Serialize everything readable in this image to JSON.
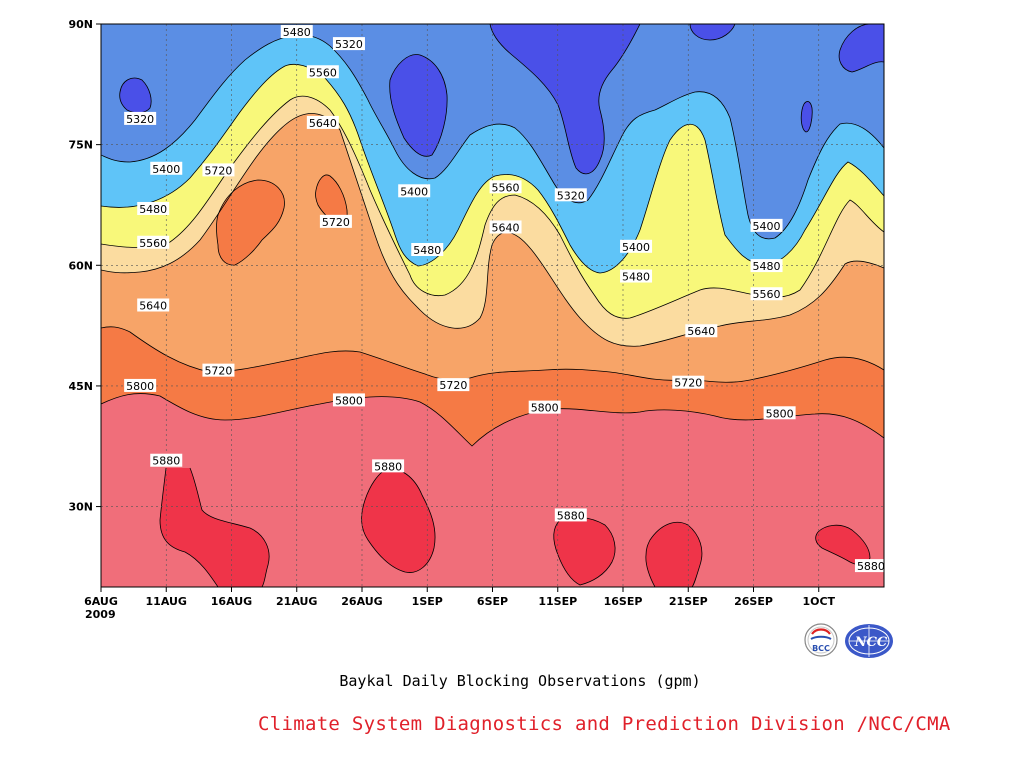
{
  "chart_data": {
    "type": "heatmap",
    "title": "Baykal Daily Blocking Observations (gpm)",
    "x_tick_labels": [
      "6AUG",
      "11AUG",
      "16AUG",
      "21AUG",
      "26AUG",
      "1SEP",
      "6SEP",
      "11SEP",
      "16SEP",
      "21SEP",
      "26SEP",
      "1OCT"
    ],
    "x_year_label": "2009",
    "y_tick_labels": [
      "90N",
      "75N",
      "60N",
      "45N",
      "30N"
    ],
    "xlim": [
      "2009-08-06",
      "2009-10-05"
    ],
    "ylim": [
      20,
      90
    ],
    "contour_levels": [
      5320,
      5400,
      5480,
      5560,
      5640,
      5720,
      5800,
      5880
    ],
    "band_colors": {
      "below_5320": "#4a50e8",
      "5320_5400": "#5b8ee4",
      "5400_5480": "#5fc4f8",
      "5480_5560": "#f8f87a",
      "5560_5640": "#fbdca0",
      "5640_5720": "#f7a468",
      "5720_5800": "#f57a45",
      "5800_5880": "#f06e7a",
      "above_5880": "#ef3449"
    },
    "grid": true,
    "contour_labels": [
      {
        "date": "2009-08-25",
        "lat": 87.5,
        "value": "5320"
      },
      {
        "date": "2009-08-09",
        "lat": 78.2,
        "value": "5320"
      },
      {
        "date": "2009-09-11",
        "lat": 68.7,
        "value": "5320"
      },
      {
        "date": "2009-08-21",
        "lat": 89.0,
        "value": "5480"
      },
      {
        "date": "2009-08-23",
        "lat": 84.0,
        "value": "5560"
      },
      {
        "date": "2009-08-23",
        "lat": 77.7,
        "value": "5640"
      },
      {
        "date": "2009-08-11",
        "lat": 72.0,
        "value": "5400"
      },
      {
        "date": "2009-08-15",
        "lat": 71.8,
        "value": "5720"
      },
      {
        "date": "2009-08-10",
        "lat": 67.0,
        "value": "5480"
      },
      {
        "date": "2009-08-10",
        "lat": 62.8,
        "value": "5560"
      },
      {
        "date": "2009-08-10",
        "lat": 55.0,
        "value": "5640"
      },
      {
        "date": "2009-08-24",
        "lat": 65.4,
        "value": "5720"
      },
      {
        "date": "2009-08-30",
        "lat": 69.2,
        "value": "5400"
      },
      {
        "date": "2009-08-31",
        "lat": 61.9,
        "value": "5480"
      },
      {
        "date": "2009-09-06",
        "lat": 69.7,
        "value": "5560"
      },
      {
        "date": "2009-09-06",
        "lat": 64.7,
        "value": "5640"
      },
      {
        "date": "2009-09-16",
        "lat": 62.3,
        "value": "5400"
      },
      {
        "date": "2009-09-16",
        "lat": 58.6,
        "value": "5480"
      },
      {
        "date": "2009-09-26",
        "lat": 64.9,
        "value": "5400"
      },
      {
        "date": "2009-09-26",
        "lat": 59.9,
        "value": "5480"
      },
      {
        "date": "2009-09-26",
        "lat": 56.4,
        "value": "5560"
      },
      {
        "date": "2009-09-21",
        "lat": 51.8,
        "value": "5640"
      },
      {
        "date": "2009-08-09",
        "lat": 45.0,
        "value": "5800"
      },
      {
        "date": "2009-08-15",
        "lat": 46.9,
        "value": "5720"
      },
      {
        "date": "2009-08-25",
        "lat": 43.2,
        "value": "5800"
      },
      {
        "date": "2009-09-02",
        "lat": 45.1,
        "value": "5720"
      },
      {
        "date": "2009-09-09",
        "lat": 42.3,
        "value": "5800"
      },
      {
        "date": "2009-09-20",
        "lat": 45.4,
        "value": "5720"
      },
      {
        "date": "2009-09-27",
        "lat": 41.6,
        "value": "5800"
      },
      {
        "date": "2009-08-11",
        "lat": 35.7,
        "value": "5880"
      },
      {
        "date": "2009-08-28",
        "lat": 35.0,
        "value": "5880"
      },
      {
        "date": "2009-09-11",
        "lat": 28.9,
        "value": "5880"
      },
      {
        "date": "2009-10-04",
        "lat": 22.6,
        "value": "5880"
      }
    ]
  },
  "footer": {
    "title": "Baykal Daily Blocking Observations (gpm)",
    "credit": "Climate System Diagnostics and Prediction Division /NCC/CMA"
  },
  "logos": {
    "bcc_label": "BCC",
    "ncc_label": "NCC"
  }
}
